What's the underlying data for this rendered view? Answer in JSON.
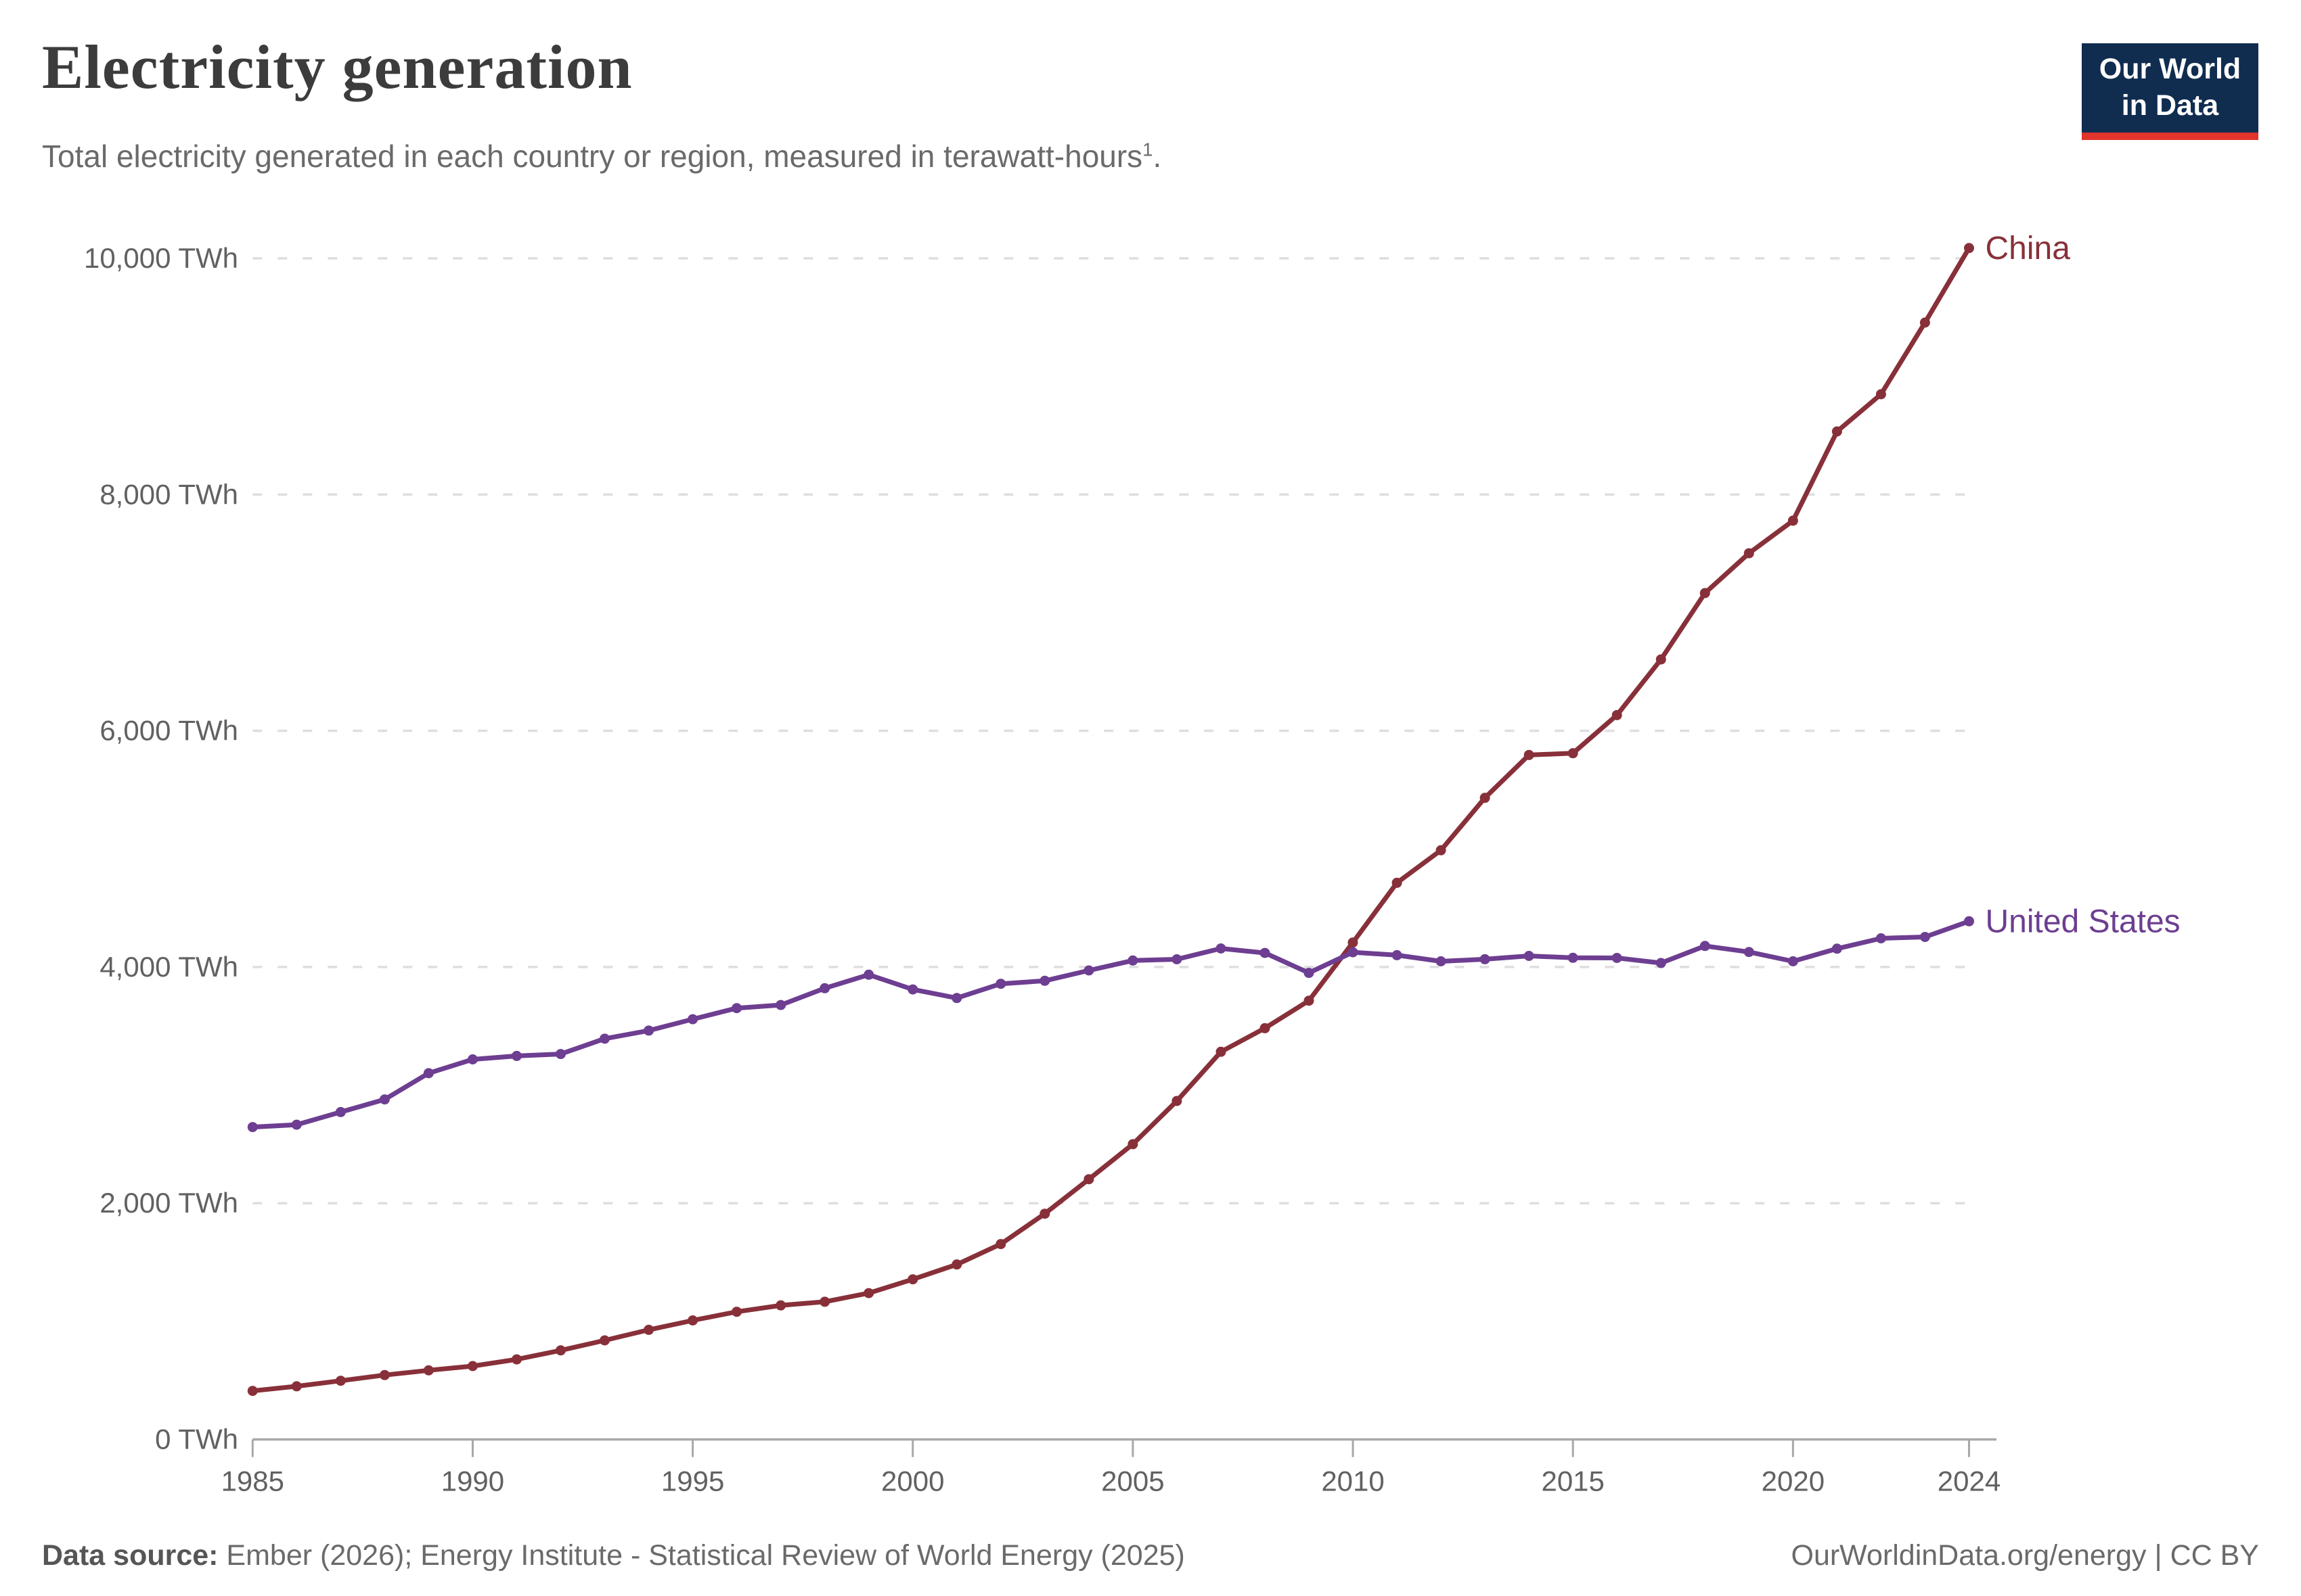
{
  "header": {
    "title": "Electricity generation",
    "subtitle": "Total electricity generated in each country or region, measured in terawatt-hours",
    "subtitle_superscript": "1",
    "subtitle_suffix": "."
  },
  "logo": {
    "line1": "Our World",
    "line2": "in Data",
    "bg_color": "#102d50",
    "accent_color": "#e0342c"
  },
  "footer": {
    "source_label": "Data source:",
    "source_text": " Ember (2026); Energy Institute - Statistical Review of World Energy (2025)",
    "link_text": "OurWorldinData.org/energy | CC BY"
  },
  "chart_data": {
    "type": "line",
    "title": "Electricity generation",
    "ylabel": "",
    "xlabel": "",
    "grid": "horizontal-dashed",
    "legend": "end-of-line-labels",
    "ylim": [
      0,
      10000
    ],
    "yticks": [
      0,
      2000,
      4000,
      6000,
      8000,
      10000
    ],
    "ytick_labels": [
      "0 TWh",
      "2,000 TWh",
      "4,000 TWh",
      "6,000 TWh",
      "8,000 TWh",
      "10,000 TWh"
    ],
    "xticks": [
      1985,
      1990,
      1995,
      2000,
      2005,
      2010,
      2015,
      2020,
      2024
    ],
    "x": [
      1985,
      1986,
      1987,
      1988,
      1989,
      1990,
      1991,
      1992,
      1993,
      1994,
      1995,
      1996,
      1997,
      1998,
      1999,
      2000,
      2001,
      2002,
      2003,
      2004,
      2005,
      2006,
      2007,
      2008,
      2009,
      2010,
      2011,
      2012,
      2013,
      2014,
      2015,
      2016,
      2017,
      2018,
      2019,
      2020,
      2021,
      2022,
      2023,
      2024
    ],
    "series": [
      {
        "name": "China",
        "color": "#883039",
        "values": [
          411,
          450,
          497,
          545,
          585,
          621,
          678,
          754,
          839,
          928,
          1008,
          1081,
          1135,
          1166,
          1239,
          1356,
          1481,
          1654,
          1911,
          2203,
          2500,
          2866,
          3282,
          3482,
          3715,
          4207,
          4713,
          4988,
          5432,
          5795,
          5810,
          6133,
          6604,
          7166,
          7503,
          7779,
          8534,
          8849,
          9456,
          10087
        ]
      },
      {
        "name": "United States",
        "color": "#6d3e91",
        "values": [
          2645,
          2665,
          2772,
          2879,
          3101,
          3218,
          3247,
          3263,
          3393,
          3462,
          3558,
          3652,
          3678,
          3820,
          3935,
          3810,
          3737,
          3858,
          3883,
          3971,
          4055,
          4065,
          4157,
          4119,
          3950,
          4125,
          4100,
          4048,
          4066,
          4094,
          4078,
          4077,
          4034,
          4178,
          4127,
          4048,
          4155,
          4243,
          4254,
          4387
        ]
      }
    ]
  }
}
